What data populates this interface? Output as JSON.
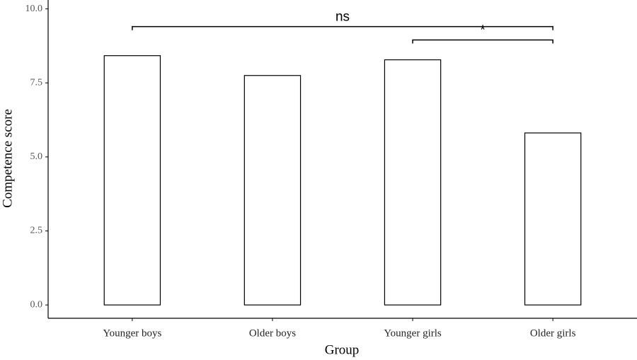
{
  "chart_data": {
    "type": "bar",
    "x_label": "Group",
    "y_label": "Competence score",
    "categories": [
      "Younger boys",
      "Older boys",
      "Younger girls",
      "Older girls"
    ],
    "values": [
      8.42,
      7.75,
      8.28,
      5.81
    ],
    "color": "#ffffff",
    "edgecolor": "#000000",
    "ylim": [
      -0.45,
      10.3
    ],
    "yticks": [
      {
        "value": 0,
        "label": "0.0"
      },
      {
        "value": 2.5,
        "label": "2.5"
      },
      {
        "value": 5,
        "label": "5.0"
      },
      {
        "value": 7.5,
        "label": "7.5"
      },
      {
        "value": 10,
        "label": "10.0"
      }
    ],
    "grid": false,
    "annotations": [
      {
        "text": "ns",
        "from": 0,
        "to": 3,
        "y": 9.4
      },
      {
        "text": "*",
        "from": 2,
        "to": 3,
        "y": 8.95
      }
    ]
  }
}
